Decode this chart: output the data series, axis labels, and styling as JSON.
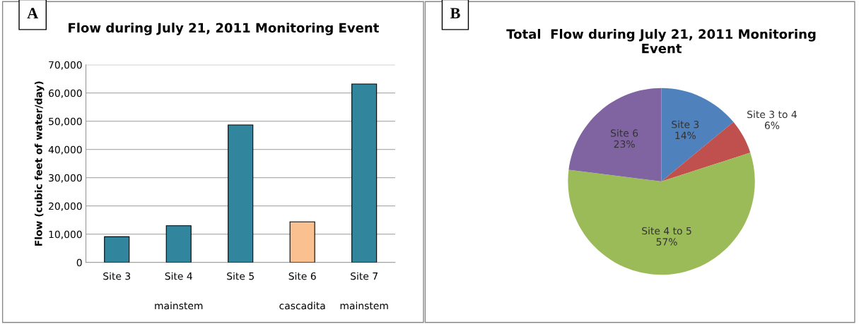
{
  "chart_data": [
    {
      "type": "bar",
      "title": "Flow during July 21, 2011 Monitoring Event",
      "ylabel": "Flow (cubic feet of water/day)",
      "categories": [
        "Site 3",
        "Site 4",
        "Site 5",
        "Site 6",
        "Site 7"
      ],
      "values": [
        9100,
        13000,
        48700,
        14400,
        63200
      ],
      "colors": [
        "#31859c",
        "#31859c",
        "#31859c",
        "#fac090",
        "#31859c"
      ],
      "ylim": [
        0,
        70000
      ],
      "yticks": [
        {
          "value": 0,
          "label": "0"
        },
        {
          "value": 10000,
          "label": "10,000"
        },
        {
          "value": 20000,
          "label": "20,000"
        },
        {
          "value": 30000,
          "label": "30,000"
        },
        {
          "value": 40000,
          "label": "40,000"
        },
        {
          "value": 50000,
          "label": "50,000"
        },
        {
          "value": 60000,
          "label": "60,000"
        },
        {
          "value": 70000,
          "label": "70,000"
        }
      ],
      "grid": "y",
      "annotations": [
        "A",
        "mainstem",
        "cascadita",
        "mainstem"
      ]
    },
    {
      "type": "pie",
      "title": "Total  Flow during July 21, 2011 Monitoring\nEvent",
      "categories": [
        "Site 3",
        "Site 3 to 4",
        "Site 4 to 5",
        "Site 6"
      ],
      "values": [
        14,
        6,
        57,
        23
      ],
      "colors": [
        "#4f81bd",
        "#c0504d",
        "#9bbb59",
        "#8064a2"
      ],
      "value_labels": [
        "14%",
        "6%",
        "57%",
        "23%"
      ],
      "annotations": [
        "B"
      ]
    }
  ]
}
